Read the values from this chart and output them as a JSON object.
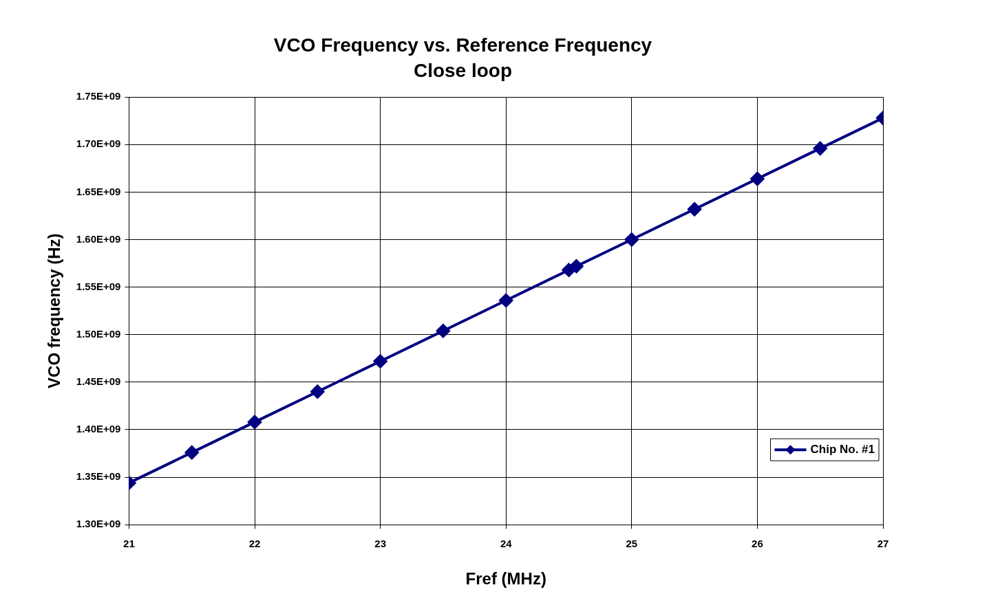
{
  "chart_data": {
    "type": "line",
    "title": "VCO Frequency vs. Reference Frequency",
    "subtitle": "Close loop",
    "xlabel": "Fref (MHz)",
    "ylabel": "VCO frequency (Hz)",
    "x": [
      21,
      21.5,
      22,
      22.5,
      23,
      23.5,
      24,
      24.5,
      24.56,
      25,
      25.5,
      26,
      26.5,
      27
    ],
    "series": [
      {
        "name": "Chip No. #1",
        "color": "#000080",
        "values": [
          1344000000,
          1376000000,
          1408000000,
          1440000000,
          1472000000,
          1504000000,
          1536000000,
          1568000000,
          1572000000,
          1600000000,
          1632000000,
          1664000000,
          1696000000,
          1728000000
        ]
      }
    ],
    "xlim": [
      21,
      27
    ],
    "xticks": [
      21,
      22,
      23,
      24,
      25,
      26,
      27
    ],
    "ylim": [
      1300000000,
      1750000000
    ],
    "yticks": [
      {
        "value": 1300000000,
        "label": "1.30E+09"
      },
      {
        "value": 1350000000,
        "label": "1.35E+09"
      },
      {
        "value": 1400000000,
        "label": "1.40E+09"
      },
      {
        "value": 1450000000,
        "label": "1.45E+09"
      },
      {
        "value": 1500000000,
        "label": "1.50E+09"
      },
      {
        "value": 1550000000,
        "label": "1.55E+09"
      },
      {
        "value": 1600000000,
        "label": "1.60E+09"
      },
      {
        "value": 1650000000,
        "label": "1.65E+09"
      },
      {
        "value": 1700000000,
        "label": "1.70E+09"
      },
      {
        "value": 1750000000,
        "label": "1.75E+09"
      }
    ],
    "grid": true,
    "legend": "bottom right",
    "marker": "diamond",
    "line_style": "solid"
  }
}
